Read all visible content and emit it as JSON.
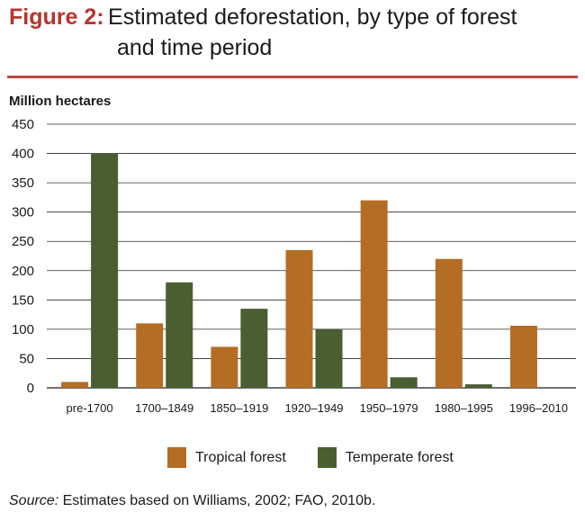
{
  "header": {
    "figure_label": "Figure 2:",
    "title_line1": "Estimated deforestation, by type of forest",
    "title_line2": "and time period"
  },
  "colors": {
    "accent": "#b5352d",
    "tropical": "#b46d25",
    "temperate": "#4a5e32"
  },
  "chart_data": {
    "type": "bar",
    "ylabel": "Million hectares",
    "ylim": [
      0,
      450
    ],
    "yticks": [
      0,
      50,
      100,
      150,
      200,
      250,
      300,
      350,
      400,
      450
    ],
    "grid": true,
    "legend_position": "bottom",
    "categories": [
      "pre-1700",
      "1700–1849",
      "1850–1919",
      "1920–1949",
      "1950–1979",
      "1980–1995",
      "1996–2010"
    ],
    "series": [
      {
        "name": "Tropical forest",
        "color": "#b46d25",
        "values": [
          10,
          110,
          70,
          235,
          320,
          220,
          106
        ]
      },
      {
        "name": "Temperate forest",
        "color": "#4a5e32",
        "values": [
          400,
          180,
          135,
          100,
          18,
          6,
          0
        ]
      }
    ]
  },
  "legend": {
    "items": [
      "Tropical forest",
      "Temperate forest"
    ]
  },
  "source": {
    "label": "Source:",
    "text": " Estimates based on Williams, 2002; FAO, 2010b."
  }
}
